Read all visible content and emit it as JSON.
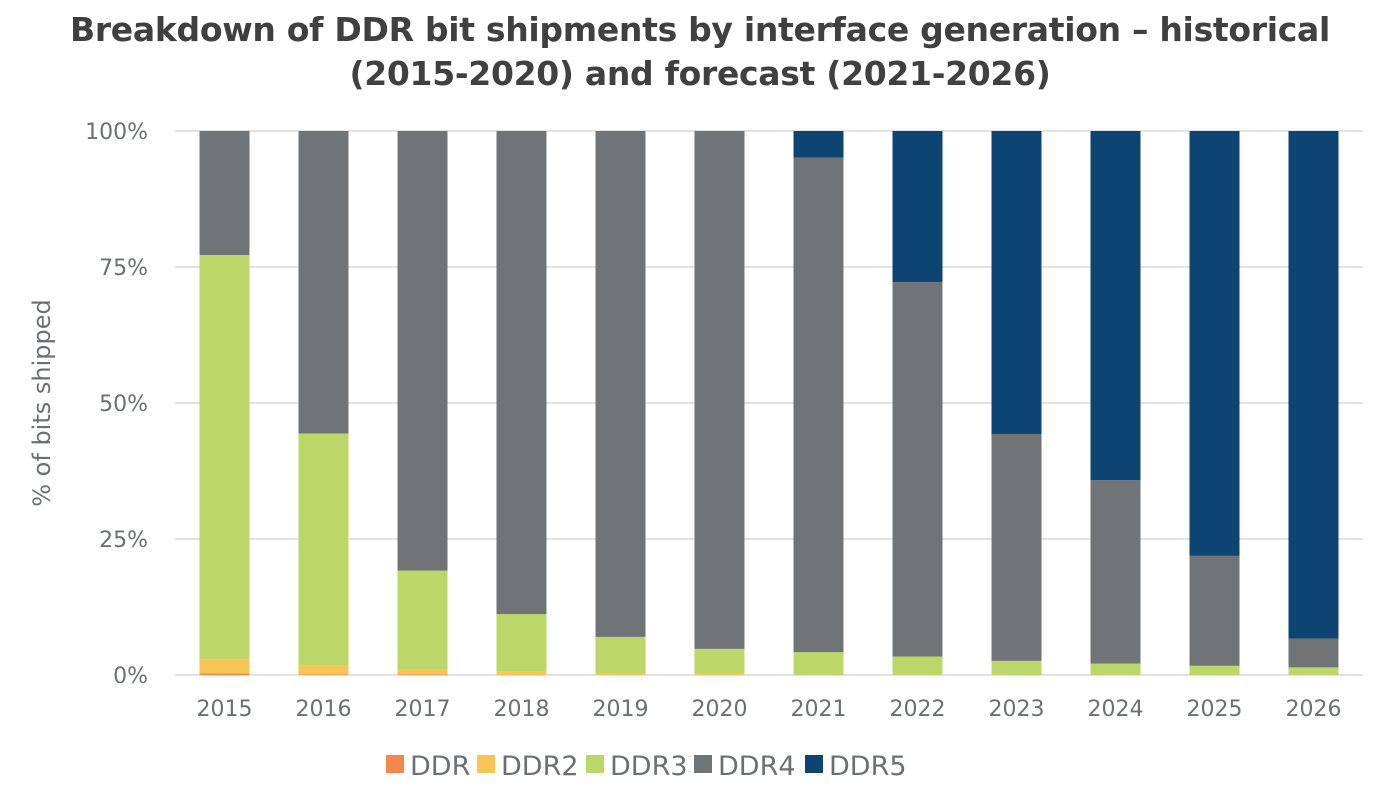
{
  "chart_data": {
    "type": "bar",
    "stacked": true,
    "normalized": true,
    "title": "Breakdown of DDR bit shipments by interface generation – historical (2015-2020) and forecast (2021-2026)",
    "title_lines": [
      "Breakdown of DDR bit shipments by interface generation – historical",
      "(2015-2020) and forecast (2021-2026)"
    ],
    "xlabel": "",
    "ylabel": "% of bits shipped",
    "ylim": [
      0,
      100
    ],
    "yticks": [
      0,
      25,
      50,
      75,
      100
    ],
    "ytick_labels": [
      "0%",
      "25%",
      "50%",
      "75%",
      "100%"
    ],
    "grid": true,
    "legend_position": "bottom",
    "categories": [
      "2015",
      "2016",
      "2017",
      "2018",
      "2019",
      "2020",
      "2021",
      "2022",
      "2023",
      "2024",
      "2025",
      "2026"
    ],
    "series": [
      {
        "name": "DDR",
        "color": "#f4874b",
        "values": [
          0.3,
          0.1,
          0.1,
          0.0,
          0.0,
          0.0,
          0.0,
          0.0,
          0.0,
          0.0,
          0.0,
          0.0
        ]
      },
      {
        "name": "DDR2",
        "color": "#f6c555",
        "values": [
          2.5,
          1.6,
          1.0,
          0.6,
          0.3,
          0.2,
          0.0,
          0.0,
          0.0,
          0.0,
          0.0,
          0.0
        ]
      },
      {
        "name": "DDR3",
        "color": "#bcd66a",
        "values": [
          74.4,
          42.7,
          18.1,
          10.6,
          6.7,
          4.6,
          4.2,
          3.4,
          2.6,
          2.1,
          1.7,
          1.4
        ]
      },
      {
        "name": "DDR4",
        "color": "#717477",
        "values": [
          22.8,
          55.6,
          80.8,
          88.8,
          93.0,
          95.2,
          90.9,
          68.8,
          41.7,
          33.7,
          20.2,
          5.3
        ]
      },
      {
        "name": "DDR5",
        "color": "#0d4472",
        "values": [
          0.0,
          0.0,
          0.0,
          0.0,
          0.0,
          0.0,
          4.9,
          27.8,
          55.7,
          64.2,
          78.1,
          93.3
        ]
      }
    ]
  }
}
